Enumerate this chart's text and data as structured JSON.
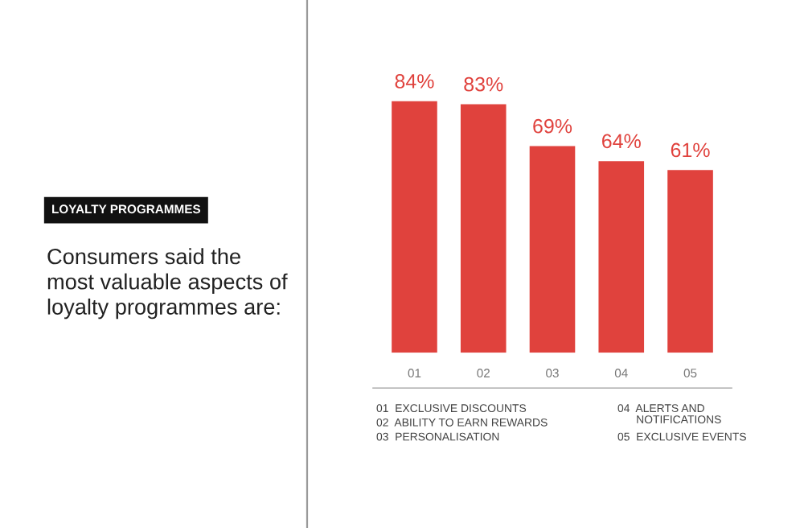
{
  "chart_data": {
    "type": "bar",
    "title": "LOYALTY PROGRAMMES",
    "subtitle": "Consumers said the\nmost valuable aspects of\nloyalty programmes are:",
    "categories": [
      "01",
      "02",
      "03",
      "04",
      "05"
    ],
    "values": [
      84,
      83,
      69,
      64,
      61
    ],
    "color": "#e0423d",
    "value_labels": [
      "84%",
      "83%",
      "69%",
      "64%",
      "61%"
    ],
    "tick_labels": "x",
    "annotations": [
      "01  EXCLUSIVE DISCOUNTS",
      "02  ABILITY TO EARN REWARDS",
      "03  PERSONALISATION",
      "04  ALERTS AND\n      NOTIFICATIONS",
      "05  EXCLUSIVE EVENTS"
    ]
  }
}
